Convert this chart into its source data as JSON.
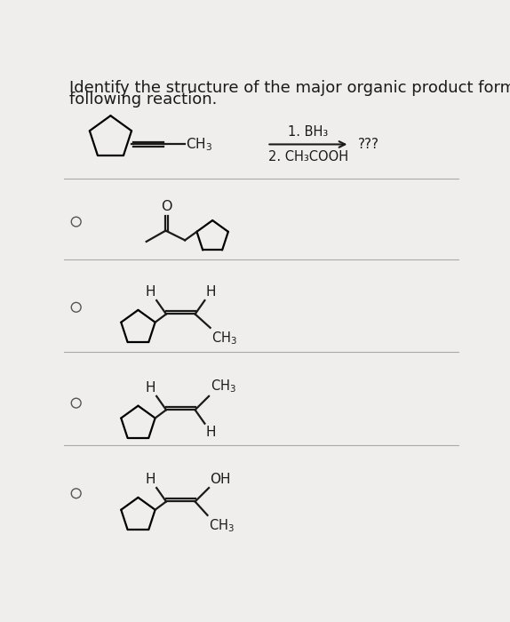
{
  "title_line1": "Identify the structure of the major organic product formed in the",
  "title_line2": "following reaction.",
  "bg_color": "#f0eeec",
  "text_color": "#1a1a1a",
  "reagent1": "1. BH₃",
  "reagent2": "2. CH₃COOH",
  "product_label": "???",
  "title_fontsize": 13,
  "body_fontsize": 11,
  "lw": 1.6
}
